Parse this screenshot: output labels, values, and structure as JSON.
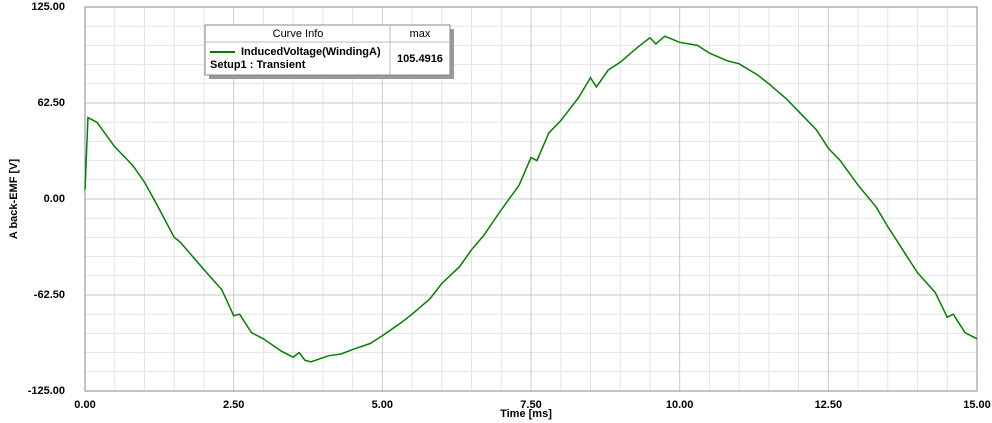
{
  "chart_data": {
    "type": "line",
    "xlabel": "Time [ms]",
    "ylabel": "A back-EMF [V]",
    "xlim": [
      0,
      15
    ],
    "ylim": [
      -125,
      125
    ],
    "xticks": [
      {
        "value": 0,
        "label": "0.00"
      },
      {
        "value": 2.5,
        "label": "2.50"
      },
      {
        "value": 5,
        "label": "5.00"
      },
      {
        "value": 7.5,
        "label": "7.50"
      },
      {
        "value": 10,
        "label": "10.00"
      },
      {
        "value": 12.5,
        "label": "12.50"
      },
      {
        "value": 15,
        "label": "15.00"
      }
    ],
    "yticks": [
      {
        "value": -125,
        "label": "-125.00"
      },
      {
        "value": -62.5,
        "label": "-62.50"
      },
      {
        "value": 0,
        "label": "0.00"
      },
      {
        "value": 62.5,
        "label": "62.50"
      },
      {
        "value": 125,
        "label": "125.00"
      }
    ],
    "x_minor_ticks": [
      0.5,
      1,
      1.5,
      2,
      3,
      3.5,
      4,
      4.5,
      5.5,
      6,
      6.5,
      7,
      8,
      8.5,
      9,
      9.5,
      10.5,
      11,
      11.5,
      12,
      13,
      13.5,
      14,
      14.5
    ],
    "y_minor_ticks": [
      -112.5,
      -100,
      -87.5,
      -75,
      -50,
      -37.5,
      -25,
      -12.5,
      12.5,
      25,
      37.5,
      50,
      75,
      87.5,
      100,
      112.5
    ],
    "grid": true,
    "legend": {
      "header": "Curve Info",
      "stat_header": "max",
      "setup": "Setup1 : Transient",
      "max_value": 105.4916
    },
    "x": [
      0,
      0.05,
      0.2,
      0.5,
      0.8,
      1.0,
      1.2,
      1.5,
      1.6,
      2.0,
      2.3,
      2.5,
      2.6,
      2.8,
      3.0,
      3.3,
      3.5,
      3.6,
      3.7,
      3.8,
      4.1,
      4.3,
      4.5,
      4.8,
      5.0,
      5.3,
      5.5,
      5.8,
      6.0,
      6.3,
      6.5,
      6.7,
      7.0,
      7.3,
      7.5,
      7.6,
      7.8,
      8.0,
      8.3,
      8.5,
      8.6,
      8.8,
      9.0,
      9.3,
      9.5,
      9.6,
      9.75,
      10.0,
      10.3,
      10.5,
      10.8,
      11.0,
      11.3,
      11.5,
      11.8,
      12.0,
      12.3,
      12.5,
      12.7,
      13.0,
      13.3,
      13.5,
      13.8,
      14.0,
      14.3,
      14.5,
      14.6,
      14.8,
      15.0
    ],
    "series": [
      {
        "name": "InducedVoltage(WindingA)",
        "color": "#008000",
        "values": [
          6,
          53,
          50,
          34,
          22,
          11,
          -3,
          -25,
          -28,
          -46,
          -59,
          -76,
          -75,
          -87,
          -91,
          -99,
          -103,
          -100,
          -105,
          -106,
          -102,
          -101,
          -98,
          -94,
          -89,
          -81,
          -75,
          -65,
          -55,
          -44,
          -33,
          -24,
          -7,
          9,
          27,
          25,
          43,
          51,
          66,
          79,
          73,
          84,
          89,
          99,
          105,
          101,
          106,
          102,
          100,
          95,
          90,
          88,
          81,
          75,
          65,
          57,
          45,
          33,
          25,
          9,
          -5,
          -18,
          -36,
          -48,
          -61,
          -77,
          -75,
          -87,
          -91
        ]
      }
    ]
  }
}
